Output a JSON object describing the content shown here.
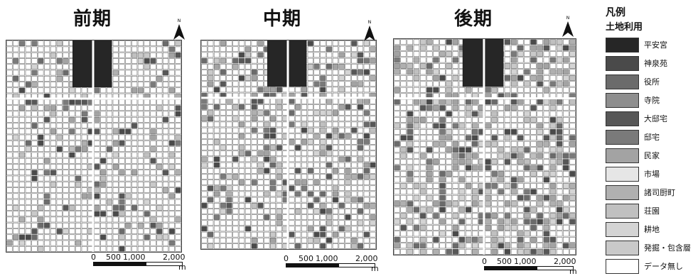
{
  "panels": [
    {
      "title": "前期",
      "north_label": "N",
      "scale": {
        "ticks": [
          "0",
          "500",
          "1,000",
          "2,000"
        ],
        "unit": "m"
      }
    },
    {
      "title": "中期",
      "north_label": "N",
      "scale": {
        "ticks": [
          "0",
          "500",
          "1,000",
          "2,000"
        ],
        "unit": "m"
      }
    },
    {
      "title": "後期",
      "north_label": "N",
      "scale": {
        "ticks": [
          "0",
          "500",
          "1,000",
          "2,000"
        ],
        "unit": "m"
      }
    }
  ],
  "legend": {
    "title": "凡例",
    "subtitle": "土地利用",
    "items": [
      {
        "label": "平安宮",
        "color": "#262626"
      },
      {
        "label": "神泉苑",
        "color": "#4a4a4a"
      },
      {
        "label": "役所",
        "color": "#6b6b6b"
      },
      {
        "label": "寺院",
        "color": "#8e8e8e"
      },
      {
        "label": "大邸宅",
        "color": "#575757"
      },
      {
        "label": "邸宅",
        "color": "#7a7a7a"
      },
      {
        "label": "民家",
        "color": "#a3a3a3"
      },
      {
        "label": "市場",
        "color": "#e6e6e6"
      },
      {
        "label": "諸司厨町",
        "color": "#b0b0b0"
      },
      {
        "label": "荘園",
        "color": "#c0c0c0"
      },
      {
        "label": "耕地",
        "color": "#d4d4d4"
      },
      {
        "label": "発掘・包含層",
        "color": "#c9c9c9"
      },
      {
        "label": "データ無し",
        "color": "#ffffff"
      }
    ]
  }
}
